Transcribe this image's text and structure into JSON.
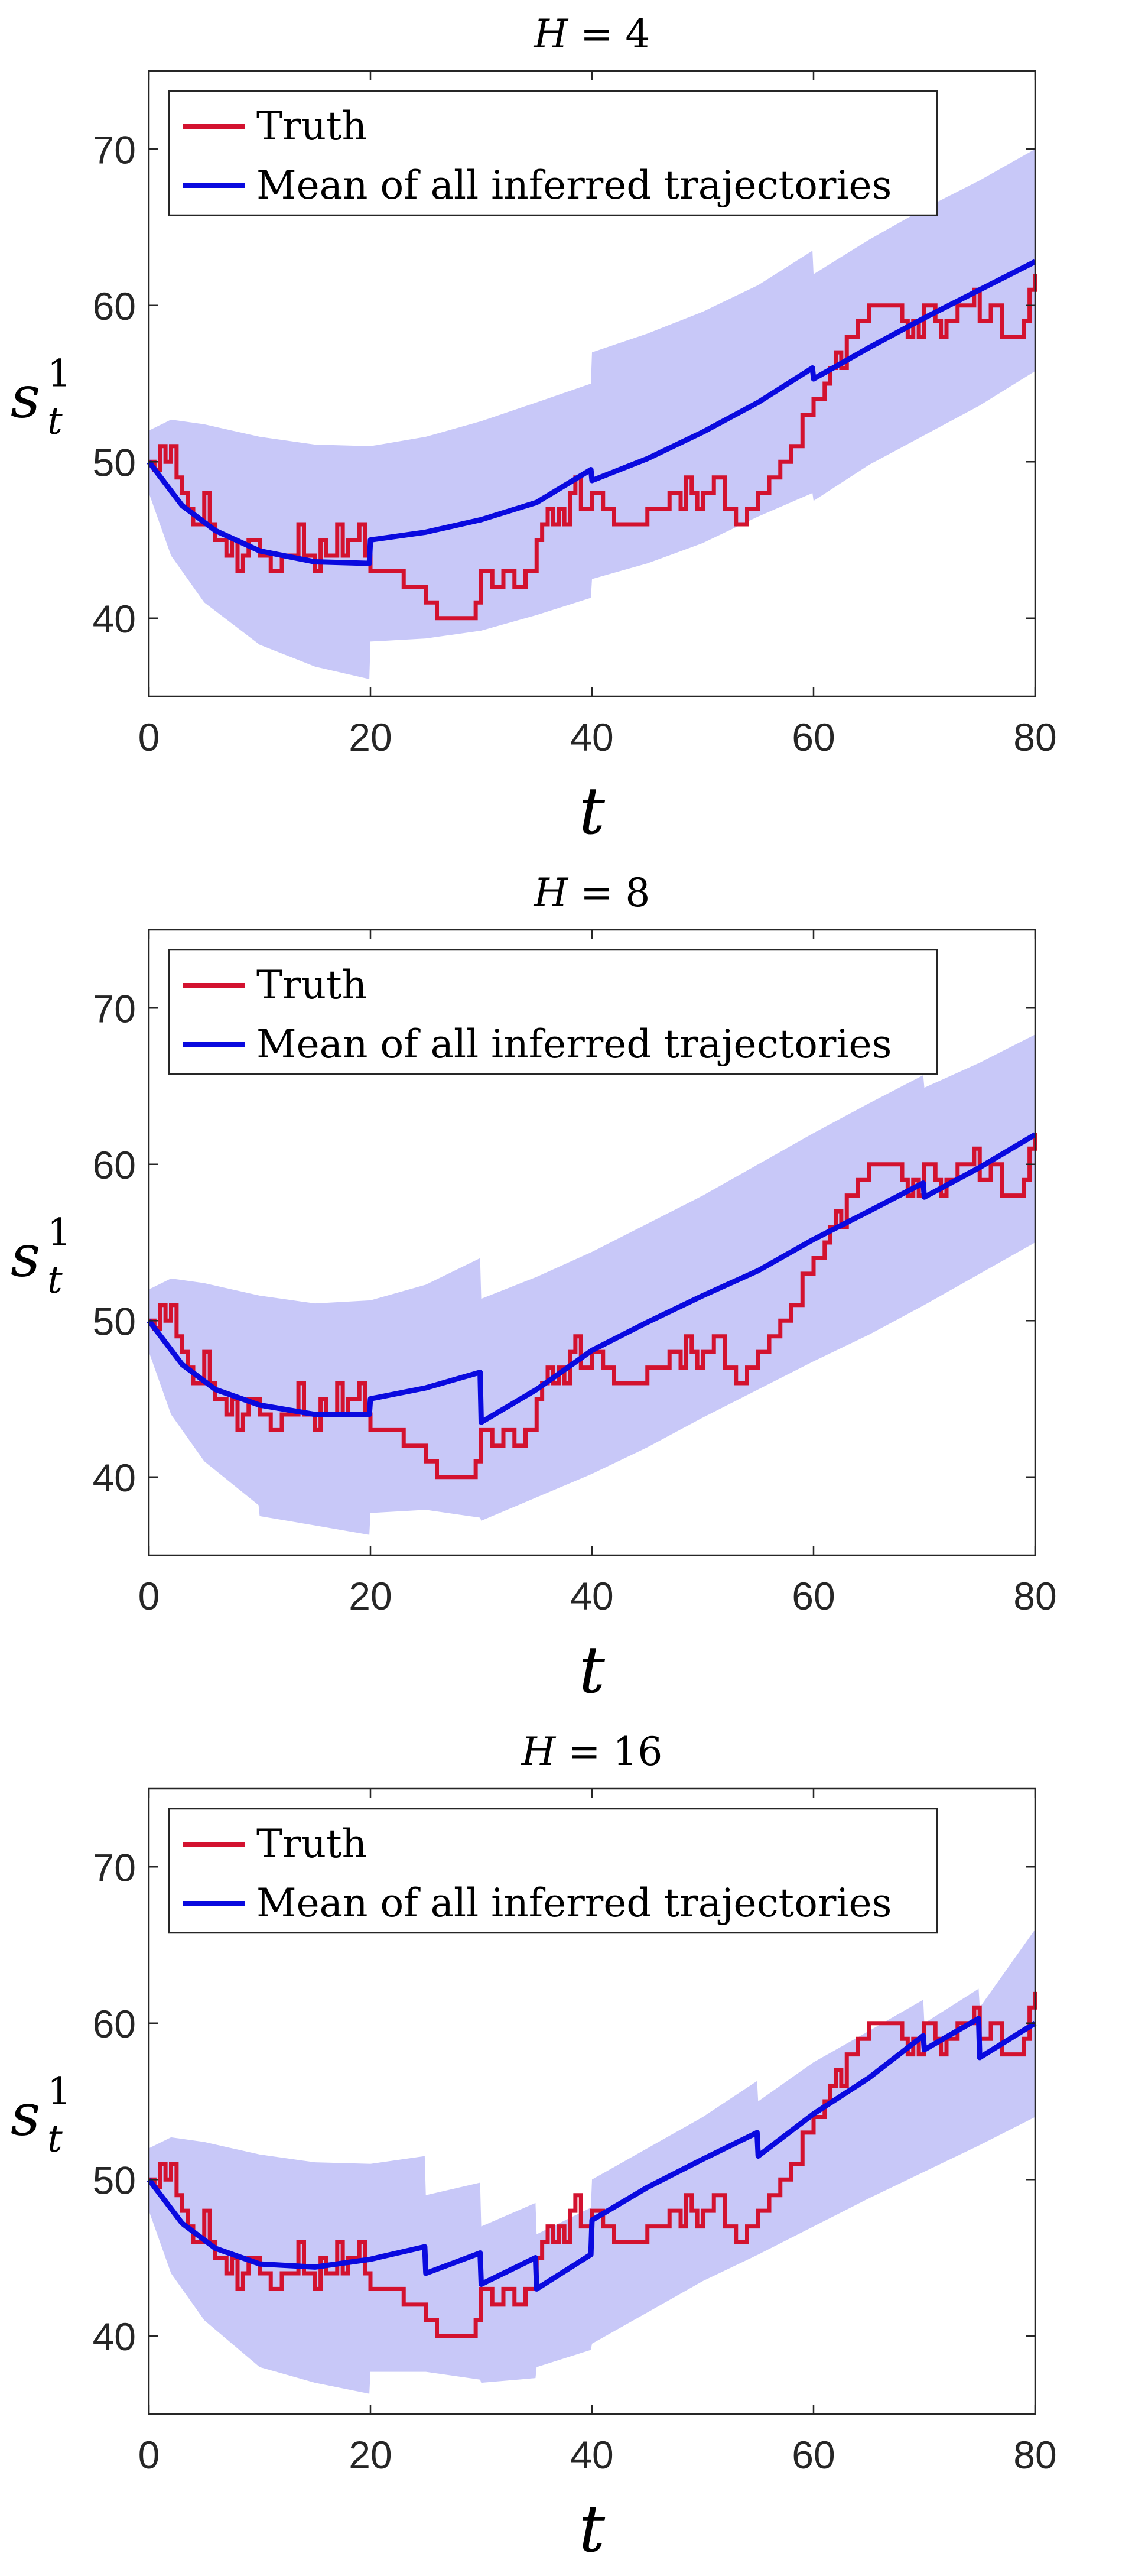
{
  "figure": {
    "panel_count": 3
  },
  "colors": {
    "truth": "#d3122f",
    "mean": "#0a0adf",
    "band": "#c8c8f8",
    "axis": "#262626"
  },
  "chart_data": [
    {
      "type": "line",
      "title": "H = 4",
      "title_var": "H",
      "title_val": "4",
      "xlabel": "t",
      "ylabel": {
        "base": "s",
        "sup": "1",
        "sub": "t"
      },
      "xlim": [
        0,
        80
      ],
      "ylim": [
        35,
        75
      ],
      "xticks": [
        0,
        20,
        40,
        60,
        80
      ],
      "yticks": [
        40,
        50,
        60,
        70
      ],
      "legend": {
        "placement": "top-left",
        "entries": [
          "Truth",
          "Mean of all inferred trajectories"
        ]
      },
      "horizon": 4,
      "band": {
        "upper": [
          [
            0,
            52
          ],
          [
            2,
            52.7
          ],
          [
            5,
            52.4
          ],
          [
            10,
            51.6
          ],
          [
            15,
            51.1
          ],
          [
            19.9,
            51
          ],
          [
            20,
            51
          ],
          [
            25,
            51.6
          ],
          [
            30,
            52.6
          ],
          [
            35,
            53.8
          ],
          [
            39.9,
            55
          ],
          [
            40,
            57
          ],
          [
            45,
            58.2
          ],
          [
            50,
            59.6
          ],
          [
            55,
            61.3
          ],
          [
            59.9,
            63.5
          ],
          [
            60,
            62
          ],
          [
            65,
            64.2
          ],
          [
            70,
            66.2
          ],
          [
            75,
            68
          ],
          [
            80,
            70
          ]
        ],
        "lower": [
          [
            0,
            48
          ],
          [
            2,
            44
          ],
          [
            5,
            41
          ],
          [
            10,
            38.3
          ],
          [
            15,
            36.9
          ],
          [
            19.9,
            36.1
          ],
          [
            20,
            38.5
          ],
          [
            25,
            38.7
          ],
          [
            30,
            39.2
          ],
          [
            35,
            40.2
          ],
          [
            39.9,
            41.3
          ],
          [
            40,
            42.5
          ],
          [
            45,
            43.5
          ],
          [
            50,
            44.8
          ],
          [
            55,
            46.5
          ],
          [
            59.9,
            48
          ],
          [
            60,
            47.5
          ],
          [
            65,
            49.8
          ],
          [
            70,
            51.7
          ],
          [
            75,
            53.6
          ],
          [
            80,
            55.8
          ]
        ]
      },
      "mean": [
        [
          0,
          50
        ],
        [
          3,
          47.2
        ],
        [
          6,
          45.6
        ],
        [
          10,
          44.3
        ],
        [
          15,
          43.6
        ],
        [
          19.9,
          43.5
        ],
        [
          20,
          45
        ],
        [
          25,
          45.5
        ],
        [
          30,
          46.3
        ],
        [
          35,
          47.4
        ],
        [
          39.9,
          49.5
        ],
        [
          40,
          48.8
        ],
        [
          45,
          50.2
        ],
        [
          50,
          51.9
        ],
        [
          55,
          53.8
        ],
        [
          59.9,
          56
        ],
        [
          60,
          55.3
        ],
        [
          65,
          57.3
        ],
        [
          70,
          59.2
        ],
        [
          75,
          61
        ],
        [
          80,
          62.8
        ]
      ]
    },
    {
      "type": "line",
      "title": "H = 8",
      "title_var": "H",
      "title_val": "8",
      "xlabel": "t",
      "ylabel": {
        "base": "s",
        "sup": "1",
        "sub": "t"
      },
      "xlim": [
        0,
        80
      ],
      "ylim": [
        35,
        75
      ],
      "xticks": [
        0,
        20,
        40,
        60,
        80
      ],
      "yticks": [
        40,
        50,
        60,
        70
      ],
      "legend": {
        "placement": "top-left",
        "entries": [
          "Truth",
          "Mean of all inferred trajectories"
        ]
      },
      "horizon": 8,
      "band": {
        "upper": [
          [
            0,
            52
          ],
          [
            2,
            52.7
          ],
          [
            5,
            52.4
          ],
          [
            10,
            51.6
          ],
          [
            15,
            51.1
          ],
          [
            20,
            51.3
          ],
          [
            25,
            52.3
          ],
          [
            29.9,
            54
          ],
          [
            30,
            51.4
          ],
          [
            35,
            52.8
          ],
          [
            40,
            54.4
          ],
          [
            45,
            56.2
          ],
          [
            50,
            58
          ],
          [
            55,
            60
          ],
          [
            60,
            62
          ],
          [
            65,
            63.9
          ],
          [
            69.9,
            65.7
          ],
          [
            70,
            64.9
          ],
          [
            75,
            66.5
          ],
          [
            80,
            68.3
          ]
        ],
        "lower": [
          [
            0,
            48
          ],
          [
            2,
            44
          ],
          [
            5,
            41
          ],
          [
            9.9,
            38.2
          ],
          [
            10,
            37.5
          ],
          [
            15,
            36.9
          ],
          [
            19.9,
            36.3
          ],
          [
            20,
            37.7
          ],
          [
            25,
            37.9
          ],
          [
            29.9,
            37.4
          ],
          [
            30,
            37.2
          ],
          [
            35,
            38.7
          ],
          [
            40,
            40.2
          ],
          [
            45,
            41.9
          ],
          [
            50,
            43.8
          ],
          [
            55,
            45.6
          ],
          [
            60,
            47.4
          ],
          [
            65,
            49.1
          ],
          [
            70,
            51
          ],
          [
            75,
            53
          ],
          [
            80,
            55
          ]
        ]
      },
      "mean": [
        [
          0,
          50
        ],
        [
          3,
          47.2
        ],
        [
          6,
          45.6
        ],
        [
          10,
          44.6
        ],
        [
          15,
          44
        ],
        [
          19.9,
          44
        ],
        [
          20,
          45
        ],
        [
          25,
          45.7
        ],
        [
          29.9,
          46.7
        ],
        [
          30,
          43.5
        ],
        [
          35,
          45.6
        ],
        [
          40,
          48.1
        ],
        [
          45,
          49.9
        ],
        [
          50,
          51.6
        ],
        [
          55,
          53.2
        ],
        [
          60,
          55.2
        ],
        [
          65,
          57
        ],
        [
          69.9,
          58.8
        ],
        [
          70,
          57.9
        ],
        [
          75,
          59.8
        ],
        [
          80,
          61.9
        ]
      ]
    },
    {
      "type": "line",
      "title": "H = 16",
      "title_var": "H",
      "title_val": "16",
      "xlabel": "t",
      "ylabel": {
        "base": "s",
        "sup": "1",
        "sub": "t"
      },
      "xlim": [
        0,
        80
      ],
      "ylim": [
        35,
        75
      ],
      "xticks": [
        0,
        20,
        40,
        60,
        80
      ],
      "yticks": [
        40,
        50,
        60,
        70
      ],
      "legend": {
        "placement": "top-left",
        "entries": [
          "Truth",
          "Mean of all inferred trajectories"
        ]
      },
      "horizon": 16,
      "band": {
        "upper": [
          [
            0,
            52
          ],
          [
            2,
            52.7
          ],
          [
            5,
            52.4
          ],
          [
            10,
            51.6
          ],
          [
            15,
            51.1
          ],
          [
            20,
            51
          ],
          [
            24.9,
            51.5
          ],
          [
            25,
            49
          ],
          [
            29.9,
            49.8
          ],
          [
            30,
            47
          ],
          [
            34.9,
            48.5
          ],
          [
            35,
            46.5
          ],
          [
            39.9,
            48.2
          ],
          [
            40,
            50
          ],
          [
            45,
            52
          ],
          [
            50,
            54
          ],
          [
            54.9,
            56.3
          ],
          [
            55,
            55
          ],
          [
            60,
            57.5
          ],
          [
            65,
            59.5
          ],
          [
            69.9,
            61.5
          ],
          [
            70,
            60
          ],
          [
            74.9,
            62.2
          ],
          [
            75,
            61
          ],
          [
            80,
            66
          ]
        ],
        "lower": [
          [
            0,
            48
          ],
          [
            2,
            44
          ],
          [
            5,
            41
          ],
          [
            10,
            38
          ],
          [
            15,
            37
          ],
          [
            19.9,
            36.3
          ],
          [
            20,
            37.7
          ],
          [
            25,
            37.7
          ],
          [
            29.9,
            37.2
          ],
          [
            30,
            37
          ],
          [
            34.9,
            37.3
          ],
          [
            35,
            38
          ],
          [
            39.9,
            39.1
          ],
          [
            40,
            39.5
          ],
          [
            45,
            41.5
          ],
          [
            50,
            43.5
          ],
          [
            55,
            45.2
          ],
          [
            60,
            47
          ],
          [
            65,
            48.8
          ],
          [
            70,
            50.5
          ],
          [
            75,
            52.2
          ],
          [
            80,
            54
          ]
        ]
      },
      "mean": [
        [
          0,
          50
        ],
        [
          3,
          47.2
        ],
        [
          6,
          45.6
        ],
        [
          10,
          44.6
        ],
        [
          15,
          44.4
        ],
        [
          20,
          44.9
        ],
        [
          24.9,
          45.7
        ],
        [
          25,
          44
        ],
        [
          29.9,
          45.3
        ],
        [
          30,
          43.3
        ],
        [
          34.9,
          45
        ],
        [
          35,
          43
        ],
        [
          39.9,
          45.2
        ],
        [
          40,
          47.4
        ],
        [
          45,
          49.5
        ],
        [
          50,
          51.3
        ],
        [
          54.9,
          53
        ],
        [
          55,
          51.5
        ],
        [
          60,
          54.2
        ],
        [
          65,
          56.5
        ],
        [
          69.9,
          59.2
        ],
        [
          70,
          58.3
        ],
        [
          74.9,
          60.3
        ],
        [
          75,
          57.8
        ],
        [
          80,
          60
        ]
      ]
    }
  ],
  "truth_series": [
    [
      0,
      50
    ],
    [
      0.5,
      49.5
    ],
    [
      1,
      51
    ],
    [
      1.5,
      50
    ],
    [
      2,
      51
    ],
    [
      2.5,
      49
    ],
    [
      3,
      48
    ],
    [
      3.5,
      47
    ],
    [
      4,
      46
    ],
    [
      5,
      48
    ],
    [
      5.5,
      46
    ],
    [
      6,
      45
    ],
    [
      7,
      44
    ],
    [
      7.5,
      45
    ],
    [
      8,
      43
    ],
    [
      8.5,
      44
    ],
    [
      9,
      45
    ],
    [
      10,
      44
    ],
    [
      11,
      43
    ],
    [
      12,
      44
    ],
    [
      13,
      44
    ],
    [
      13.5,
      46
    ],
    [
      14,
      44
    ],
    [
      15,
      43
    ],
    [
      15.5,
      45
    ],
    [
      16,
      44
    ],
    [
      17,
      46
    ],
    [
      17.5,
      44
    ],
    [
      18,
      45
    ],
    [
      19,
      46
    ],
    [
      19.5,
      44
    ],
    [
      20,
      43
    ],
    [
      23,
      42
    ],
    [
      25,
      41
    ],
    [
      26,
      40
    ],
    [
      28,
      40
    ],
    [
      29.5,
      41
    ],
    [
      30,
      43
    ],
    [
      31,
      42
    ],
    [
      32,
      43
    ],
    [
      33,
      42
    ],
    [
      34,
      43
    ],
    [
      35,
      45
    ],
    [
      35.5,
      46
    ],
    [
      36,
      47
    ],
    [
      36.5,
      46
    ],
    [
      37,
      47
    ],
    [
      37.5,
      46
    ],
    [
      38,
      48
    ],
    [
      38.5,
      49
    ],
    [
      39,
      47
    ],
    [
      40,
      48
    ],
    [
      41,
      47
    ],
    [
      42,
      46
    ],
    [
      45,
      47
    ],
    [
      47,
      48
    ],
    [
      48,
      47
    ],
    [
      48.5,
      49
    ],
    [
      49,
      48
    ],
    [
      49.5,
      47
    ],
    [
      50,
      48
    ],
    [
      51,
      49
    ],
    [
      52,
      47
    ],
    [
      53,
      46
    ],
    [
      54,
      47
    ],
    [
      55,
      48
    ],
    [
      56,
      49
    ],
    [
      57,
      50
    ],
    [
      58,
      51
    ],
    [
      59,
      53
    ],
    [
      60,
      54
    ],
    [
      61,
      55
    ],
    [
      61.5,
      56
    ],
    [
      62,
      57
    ],
    [
      62.5,
      56
    ],
    [
      63,
      58
    ],
    [
      64,
      59
    ],
    [
      65,
      60
    ],
    [
      67,
      60
    ],
    [
      68,
      59
    ],
    [
      68.5,
      58
    ],
    [
      69,
      59
    ],
    [
      69.5,
      58
    ],
    [
      70,
      60
    ],
    [
      71,
      59
    ],
    [
      71.5,
      58
    ],
    [
      72,
      59
    ],
    [
      73,
      60
    ],
    [
      74,
      60
    ],
    [
      74.5,
      61
    ],
    [
      75,
      59
    ],
    [
      76,
      60
    ],
    [
      77,
      58
    ],
    [
      79,
      59
    ],
    [
      79.5,
      61
    ],
    [
      80,
      62
    ]
  ]
}
